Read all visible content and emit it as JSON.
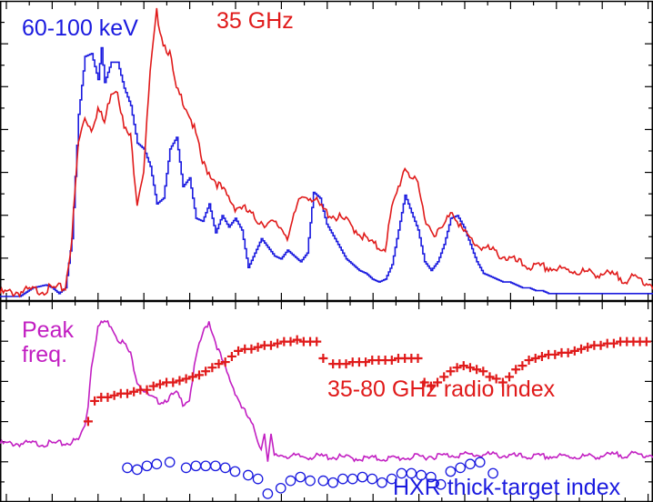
{
  "colors": {
    "hxr": "#1a1adf",
    "radio": "#e01a1a",
    "peak": "#c21fc2",
    "frame": "#000000"
  },
  "chart_data": [
    {
      "type": "line",
      "panel": "top",
      "title": "",
      "xlabel": "",
      "ylabel": "",
      "xlim": [
        0,
        100
      ],
      "ylim": [
        0,
        100
      ],
      "grid": false,
      "legend": "none",
      "labels": {
        "hxr": "60-100 keV",
        "radio": "35 GHz"
      },
      "series": [
        {
          "name": "60-100 keV",
          "color": "#1a1adf",
          "step": true,
          "x": [
            0,
            3,
            5,
            7,
            8,
            9,
            10,
            11,
            12,
            13,
            14,
            15,
            15.5,
            16,
            17,
            18,
            19,
            20,
            21,
            22,
            23,
            24,
            25,
            26,
            27,
            28,
            29,
            30,
            31,
            32,
            33,
            34,
            35,
            36,
            37,
            38,
            39,
            40,
            41,
            42,
            43,
            44,
            45,
            46,
            47,
            48,
            49,
            50,
            51,
            52,
            53,
            54,
            55,
            56,
            57,
            58,
            59,
            60,
            62,
            64,
            65,
            66,
            67,
            68,
            69,
            70,
            71,
            72,
            73,
            74,
            75,
            76,
            77,
            78,
            79,
            80,
            81,
            82,
            83,
            84,
            85,
            86,
            88,
            90,
            92,
            94,
            96,
            100
          ],
          "y": [
            0,
            0,
            3,
            4,
            3,
            1,
            3,
            20,
            63,
            83,
            84,
            75,
            86,
            74,
            81,
            81,
            72,
            66,
            53,
            51,
            45,
            32,
            34,
            51,
            55,
            38,
            41,
            27,
            26,
            32,
            22,
            28,
            24,
            27,
            23,
            10,
            15,
            20,
            17,
            14,
            13,
            16,
            14,
            12,
            15,
            36,
            34,
            25,
            21,
            17,
            13,
            11,
            9,
            8,
            6,
            5,
            6,
            11,
            35,
            23,
            12,
            9,
            12,
            18,
            27,
            28,
            24,
            18,
            12,
            8,
            7,
            6,
            5,
            5,
            4,
            3,
            3,
            2,
            2,
            1,
            1,
            1,
            1,
            1,
            1,
            1,
            1,
            1
          ]
        },
        {
          "name": "35 GHz",
          "color": "#e01a1a",
          "step": false,
          "x": [
            0,
            5,
            10,
            11,
            12,
            13,
            14,
            15,
            16,
            17,
            18,
            19,
            20,
            21,
            22,
            23,
            24,
            25,
            26,
            27,
            28,
            29,
            30,
            31,
            32,
            33,
            34,
            35,
            36,
            37,
            38,
            39,
            40,
            41,
            42,
            43,
            44,
            45,
            46,
            47,
            48,
            49,
            50,
            51,
            52,
            53,
            54,
            55,
            56,
            57,
            58,
            59,
            60,
            62,
            64,
            65,
            66,
            67,
            68,
            69,
            70,
            71,
            72,
            73,
            74,
            75,
            76,
            77,
            78,
            79,
            80,
            82,
            84,
            86,
            88,
            90,
            92,
            94,
            96,
            98,
            100
          ],
          "y": [
            1,
            2,
            3,
            20,
            53,
            62,
            58,
            65,
            60,
            71,
            72,
            58,
            55,
            33,
            44,
            77,
            98,
            88,
            84,
            71,
            68,
            63,
            56,
            46,
            43,
            40,
            37,
            34,
            31,
            31,
            29,
            27,
            26,
            25,
            25,
            24,
            21,
            27,
            34,
            35,
            34,
            31,
            29,
            28,
            27,
            26,
            24,
            22,
            20,
            18,
            17,
            17,
            30,
            45,
            38,
            28,
            23,
            22,
            24,
            30,
            27,
            22,
            20,
            18,
            17,
            16,
            15,
            14,
            13,
            12,
            11,
            10,
            10,
            9,
            9,
            8,
            8,
            7,
            6,
            6,
            4
          ]
        }
      ]
    },
    {
      "type": "line",
      "panel": "bottom",
      "title": "",
      "xlabel": "",
      "ylabel": "",
      "xlim": [
        0,
        100
      ],
      "ylim": [
        0,
        100
      ],
      "grid": false,
      "legend": "none",
      "labels": {
        "peak": "Peak\nfreq.",
        "radio_index": "35-80 GHz radio index",
        "hxr_index": "HXR thick-target index"
      },
      "series": [
        {
          "name": "Peak freq.",
          "color": "#c21fc2",
          "step": false,
          "x": [
            0,
            5,
            10,
            12,
            13,
            13.5,
            14,
            15,
            16,
            17,
            18,
            19,
            20,
            21,
            22,
            23,
            24,
            25,
            26,
            27,
            28,
            29,
            30,
            31,
            32,
            33,
            34,
            35,
            36,
            37,
            38,
            39,
            40,
            40.5,
            41,
            41.5,
            42,
            43,
            45,
            50,
            55,
            60,
            65,
            70,
            75,
            80,
            85,
            90,
            95,
            100
          ],
          "y": [
            29,
            29,
            29,
            31,
            39,
            50,
            71,
            92,
            95,
            93,
            86,
            83,
            77,
            63,
            58,
            54,
            52,
            52,
            54,
            56,
            51,
            53,
            75,
            88,
            95,
            84,
            74,
            65,
            57,
            49,
            43,
            36,
            26,
            36,
            19,
            33,
            22,
            23,
            22,
            22,
            21,
            21,
            22,
            23,
            23,
            22,
            22,
            22,
            23,
            23
          ]
        },
        {
          "name": "35-80 GHz radio index",
          "color": "#e01a1a",
          "marker": "plus",
          "x": [
            13.5,
            14.5,
            15.5,
            16.5,
            17.5,
            18.5,
            19.5,
            20.5,
            21.5,
            22.5,
            23.5,
            24.5,
            25.5,
            26.5,
            27.5,
            28.5,
            29.5,
            30.5,
            31.5,
            32.5,
            33.5,
            34.5,
            35.5,
            36.5,
            37.5,
            38.5,
            39.5,
            40.5,
            41.5,
            42.5,
            43.5,
            44.5,
            45.5,
            46.5,
            47.5,
            48.5,
            49.5,
            51,
            52,
            53,
            54,
            55,
            56,
            57,
            58,
            59,
            60,
            61,
            62,
            63,
            64,
            65,
            66,
            67,
            68,
            69,
            70,
            71,
            72,
            73,
            74,
            75,
            76,
            77,
            78,
            79,
            80,
            81,
            82,
            83,
            84,
            85,
            86,
            87,
            88,
            89,
            90,
            91,
            92,
            93,
            94,
            95,
            96,
            97,
            98,
            99
          ],
          "y": [
            41,
            52,
            54,
            54,
            55,
            56,
            56,
            57,
            58,
            58,
            60,
            61,
            62,
            62,
            63,
            64,
            65,
            66,
            68,
            70,
            72,
            73,
            76,
            79,
            80,
            80,
            81,
            82,
            82,
            83,
            84,
            84,
            85,
            84,
            84,
            84,
            75,
            72,
            72,
            72,
            73,
            73,
            73,
            74,
            74,
            74,
            74,
            75,
            75,
            75,
            75,
            62,
            60,
            62,
            65,
            68,
            70,
            71,
            70,
            69,
            68,
            65,
            64,
            62,
            65,
            69,
            71,
            74,
            75,
            76,
            77,
            77,
            78,
            78,
            79,
            80,
            81,
            82,
            82,
            83,
            83,
            84,
            84,
            84,
            84,
            84
          ]
        },
        {
          "name": "HXR thick-target index",
          "color": "#1a1adf",
          "marker": "circle",
          "x": [
            19.5,
            21,
            22.5,
            24,
            26,
            28.5,
            30,
            31.5,
            33,
            34.5,
            36,
            38,
            39.5,
            41,
            43,
            44.5,
            46,
            47.5,
            49.5,
            51,
            52.5,
            54,
            55.5,
            57,
            58.5,
            60,
            61.5,
            63,
            64.5,
            66,
            67.5,
            69,
            70.5,
            72,
            73.5,
            75.5
          ],
          "y": [
            16,
            15,
            17,
            18,
            19,
            16,
            17,
            17,
            17,
            16,
            14,
            12,
            10,
            2,
            5,
            9,
            11,
            9,
            9,
            8,
            10,
            10,
            11,
            10,
            8,
            10,
            13,
            13,
            12,
            11,
            7,
            14,
            16,
            18,
            19,
            13
          ]
        }
      ]
    }
  ]
}
